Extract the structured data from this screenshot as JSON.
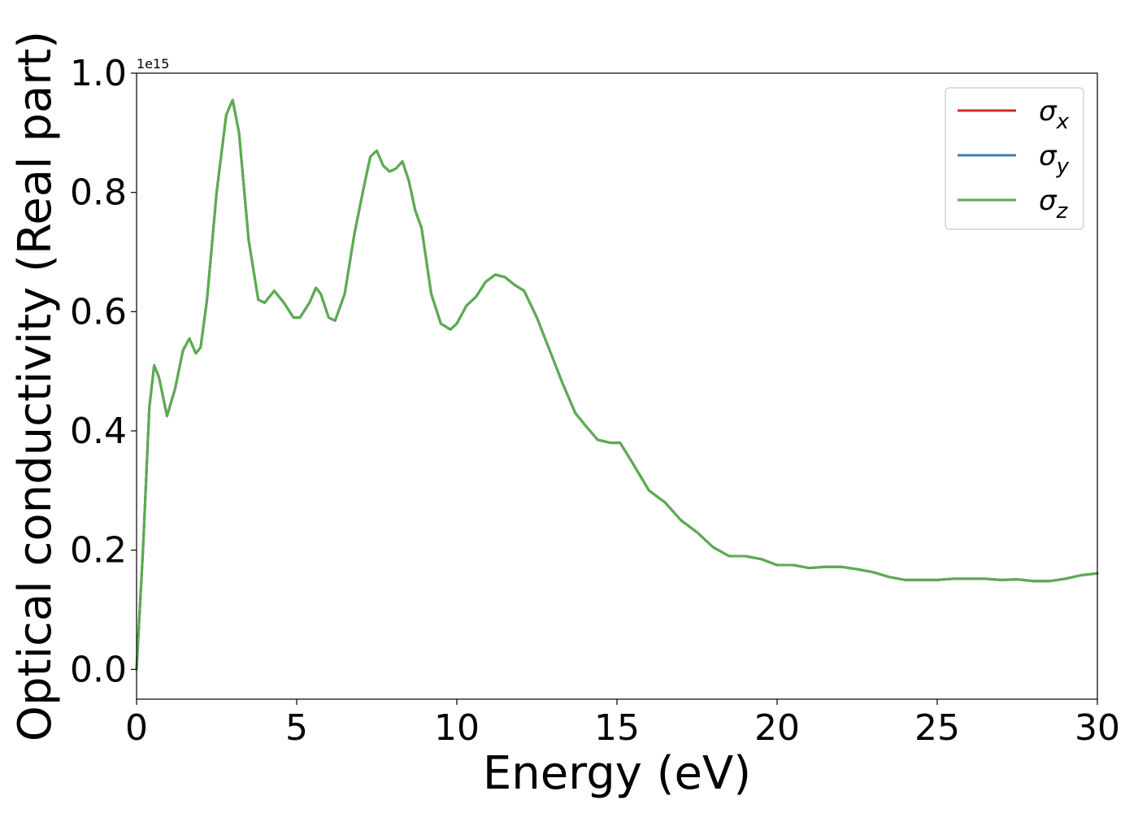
{
  "chart_data": {
    "type": "line",
    "title": "",
    "xlabel": "Energy (eV)",
    "ylabel": "Optical conductivity (Real part)",
    "xlim": [
      0,
      30
    ],
    "ylim": [
      -0.05,
      1.0
    ],
    "y_offset_label": "1e15",
    "x_ticks": [
      0,
      5,
      10,
      15,
      20,
      25,
      30
    ],
    "x_tick_labels": [
      "0",
      "5",
      "10",
      "15",
      "20",
      "25",
      "30"
    ],
    "y_ticks": [
      0.0,
      0.2,
      0.4,
      0.6,
      0.8,
      1.0
    ],
    "y_tick_labels": [
      "0.0",
      "0.2",
      "0.4",
      "0.6",
      "0.8",
      "1.0"
    ],
    "grid": false,
    "legend": {
      "placement": "top-right",
      "entries": [
        {
          "base": "σ",
          "sub": "x",
          "color": "#d62728"
        },
        {
          "base": "σ",
          "sub": "y",
          "color": "#3a7fb8"
        },
        {
          "base": "σ",
          "sub": "z",
          "color": "#5aad4e"
        }
      ]
    },
    "series_points": {
      "x": [
        0,
        0.2,
        0.4,
        0.55,
        0.7,
        0.95,
        1.2,
        1.45,
        1.65,
        1.85,
        2.0,
        2.2,
        2.5,
        2.8,
        3.0,
        3.2,
        3.5,
        3.8,
        4.0,
        4.3,
        4.6,
        4.9,
        5.1,
        5.4,
        5.6,
        5.75,
        6.0,
        6.2,
        6.5,
        6.8,
        7.1,
        7.3,
        7.5,
        7.7,
        7.9,
        8.1,
        8.3,
        8.5,
        8.7,
        8.9,
        9.2,
        9.5,
        9.8,
        10.0,
        10.3,
        10.6,
        10.9,
        11.2,
        11.5,
        11.8,
        12.1,
        12.5,
        12.9,
        13.3,
        13.7,
        14.0,
        14.4,
        14.8,
        15.1,
        15.5,
        16.0,
        16.5,
        17.0,
        17.5,
        18.0,
        18.5,
        19.0,
        19.5,
        20.0,
        20.5,
        21.0,
        21.5,
        22.0,
        22.5,
        23.0,
        23.5,
        24.0,
        24.5,
        25.0,
        25.5,
        26.0,
        26.5,
        27.0,
        27.5,
        28.0,
        28.5,
        29.0,
        29.5,
        30.0
      ],
      "y": [
        0.0,
        0.2,
        0.44,
        0.51,
        0.49,
        0.425,
        0.47,
        0.535,
        0.555,
        0.53,
        0.54,
        0.62,
        0.8,
        0.93,
        0.955,
        0.9,
        0.72,
        0.62,
        0.615,
        0.635,
        0.615,
        0.59,
        0.59,
        0.615,
        0.64,
        0.63,
        0.59,
        0.585,
        0.63,
        0.73,
        0.81,
        0.86,
        0.87,
        0.845,
        0.835,
        0.84,
        0.852,
        0.82,
        0.77,
        0.74,
        0.63,
        0.58,
        0.57,
        0.58,
        0.61,
        0.625,
        0.65,
        0.662,
        0.658,
        0.645,
        0.635,
        0.59,
        0.535,
        0.48,
        0.43,
        0.41,
        0.385,
        0.38,
        0.38,
        0.345,
        0.3,
        0.28,
        0.25,
        0.23,
        0.205,
        0.19,
        0.19,
        0.185,
        0.175,
        0.175,
        0.17,
        0.172,
        0.172,
        0.168,
        0.163,
        0.155,
        0.15,
        0.15,
        0.15,
        0.152,
        0.152,
        0.152,
        0.15,
        0.151,
        0.148,
        0.148,
        0.152,
        0.158,
        0.161
      ]
    },
    "series": [
      {
        "name": "σx",
        "color": "#d62728"
      },
      {
        "name": "σy",
        "color": "#3a7fb8"
      },
      {
        "name": "σz",
        "color": "#5aad4e"
      }
    ]
  }
}
